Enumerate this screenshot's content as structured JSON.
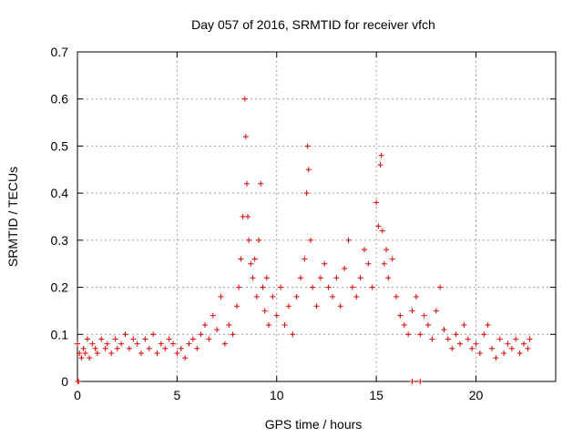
{
  "chart_data": {
    "type": "scatter",
    "title": "Day 057 of 2016, SRMTID for receiver vfch",
    "xlabel": "GPS time / hours",
    "ylabel": "SRMTID / TECUs",
    "xlim": [
      0,
      24
    ],
    "ylim": [
      0,
      0.7
    ],
    "xticks": [
      0,
      5,
      10,
      15,
      20
    ],
    "xtick_labels": [
      "0",
      "5",
      "10",
      "15",
      "20"
    ],
    "yticks": [
      0,
      0.1,
      0.2,
      0.3,
      0.4,
      0.5,
      0.6,
      0.7
    ],
    "ytick_labels": [
      "0",
      "0.1",
      "0.2",
      "0.3",
      "0.4",
      "0.5",
      "0.6",
      "0.7"
    ],
    "grid": true,
    "marker": "+",
    "marker_color": "#e00000",
    "series": [
      {
        "name": "SRMTID",
        "x": [
          0.0,
          0.05,
          0.1,
          0.2,
          0.3,
          0.4,
          0.5,
          0.6,
          0.75,
          0.9,
          1.0,
          1.2,
          1.4,
          1.5,
          1.7,
          1.9,
          2.0,
          2.2,
          2.4,
          2.6,
          2.8,
          3.0,
          3.2,
          3.4,
          3.6,
          3.8,
          4.0,
          4.2,
          4.4,
          4.6,
          4.8,
          5.0,
          5.2,
          5.4,
          5.6,
          5.8,
          6.0,
          6.2,
          6.4,
          6.6,
          6.8,
          7.0,
          7.2,
          7.4,
          7.6,
          7.8,
          8.0,
          8.1,
          8.2,
          8.3,
          8.4,
          8.45,
          8.5,
          8.55,
          8.6,
          8.7,
          8.8,
          8.9,
          9.0,
          9.1,
          9.2,
          9.3,
          9.4,
          9.5,
          9.6,
          9.8,
          10.0,
          10.2,
          10.4,
          10.6,
          10.8,
          11.0,
          11.2,
          11.4,
          11.5,
          11.55,
          11.6,
          11.7,
          11.8,
          12.0,
          12.2,
          12.4,
          12.6,
          12.8,
          13.0,
          13.2,
          13.4,
          13.6,
          13.8,
          14.0,
          14.2,
          14.4,
          14.6,
          14.8,
          15.0,
          15.1,
          15.2,
          15.25,
          15.3,
          15.4,
          15.5,
          15.6,
          15.8,
          16.0,
          16.2,
          16.4,
          16.6,
          16.8,
          17.0,
          17.2,
          17.4,
          17.6,
          17.8,
          18.0,
          18.2,
          18.4,
          18.6,
          18.8,
          19.0,
          19.2,
          19.4,
          19.6,
          19.8,
          20.0,
          20.2,
          20.4,
          20.6,
          20.8,
          21.0,
          21.2,
          21.4,
          21.6,
          21.8,
          22.0,
          22.2,
          22.4,
          22.6,
          22.7,
          0.02,
          16.8,
          17.2
        ],
        "y": [
          0.08,
          0.0,
          0.06,
          0.05,
          0.07,
          0.06,
          0.09,
          0.05,
          0.08,
          0.07,
          0.06,
          0.09,
          0.07,
          0.08,
          0.06,
          0.09,
          0.07,
          0.08,
          0.1,
          0.07,
          0.09,
          0.08,
          0.06,
          0.09,
          0.07,
          0.1,
          0.06,
          0.08,
          0.07,
          0.09,
          0.08,
          0.06,
          0.07,
          0.05,
          0.08,
          0.09,
          0.07,
          0.1,
          0.12,
          0.09,
          0.14,
          0.11,
          0.18,
          0.08,
          0.12,
          0.1,
          0.16,
          0.2,
          0.26,
          0.35,
          0.6,
          0.52,
          0.42,
          0.35,
          0.3,
          0.25,
          0.22,
          0.26,
          0.18,
          0.3,
          0.42,
          0.2,
          0.15,
          0.22,
          0.12,
          0.18,
          0.14,
          0.2,
          0.12,
          0.16,
          0.1,
          0.18,
          0.22,
          0.26,
          0.4,
          0.5,
          0.45,
          0.3,
          0.2,
          0.16,
          0.22,
          0.25,
          0.2,
          0.18,
          0.22,
          0.16,
          0.24,
          0.3,
          0.2,
          0.18,
          0.22,
          0.28,
          0.25,
          0.2,
          0.38,
          0.33,
          0.46,
          0.48,
          0.32,
          0.25,
          0.28,
          0.22,
          0.26,
          0.18,
          0.14,
          0.12,
          0.1,
          0.15,
          0.18,
          0.1,
          0.14,
          0.12,
          0.09,
          0.15,
          0.2,
          0.11,
          0.09,
          0.07,
          0.1,
          0.08,
          0.12,
          0.09,
          0.07,
          0.08,
          0.06,
          0.1,
          0.12,
          0.07,
          0.05,
          0.09,
          0.06,
          0.08,
          0.07,
          0.09,
          0.06,
          0.08,
          0.07,
          0.09,
          0.0,
          0.0,
          0.0
        ]
      }
    ]
  }
}
